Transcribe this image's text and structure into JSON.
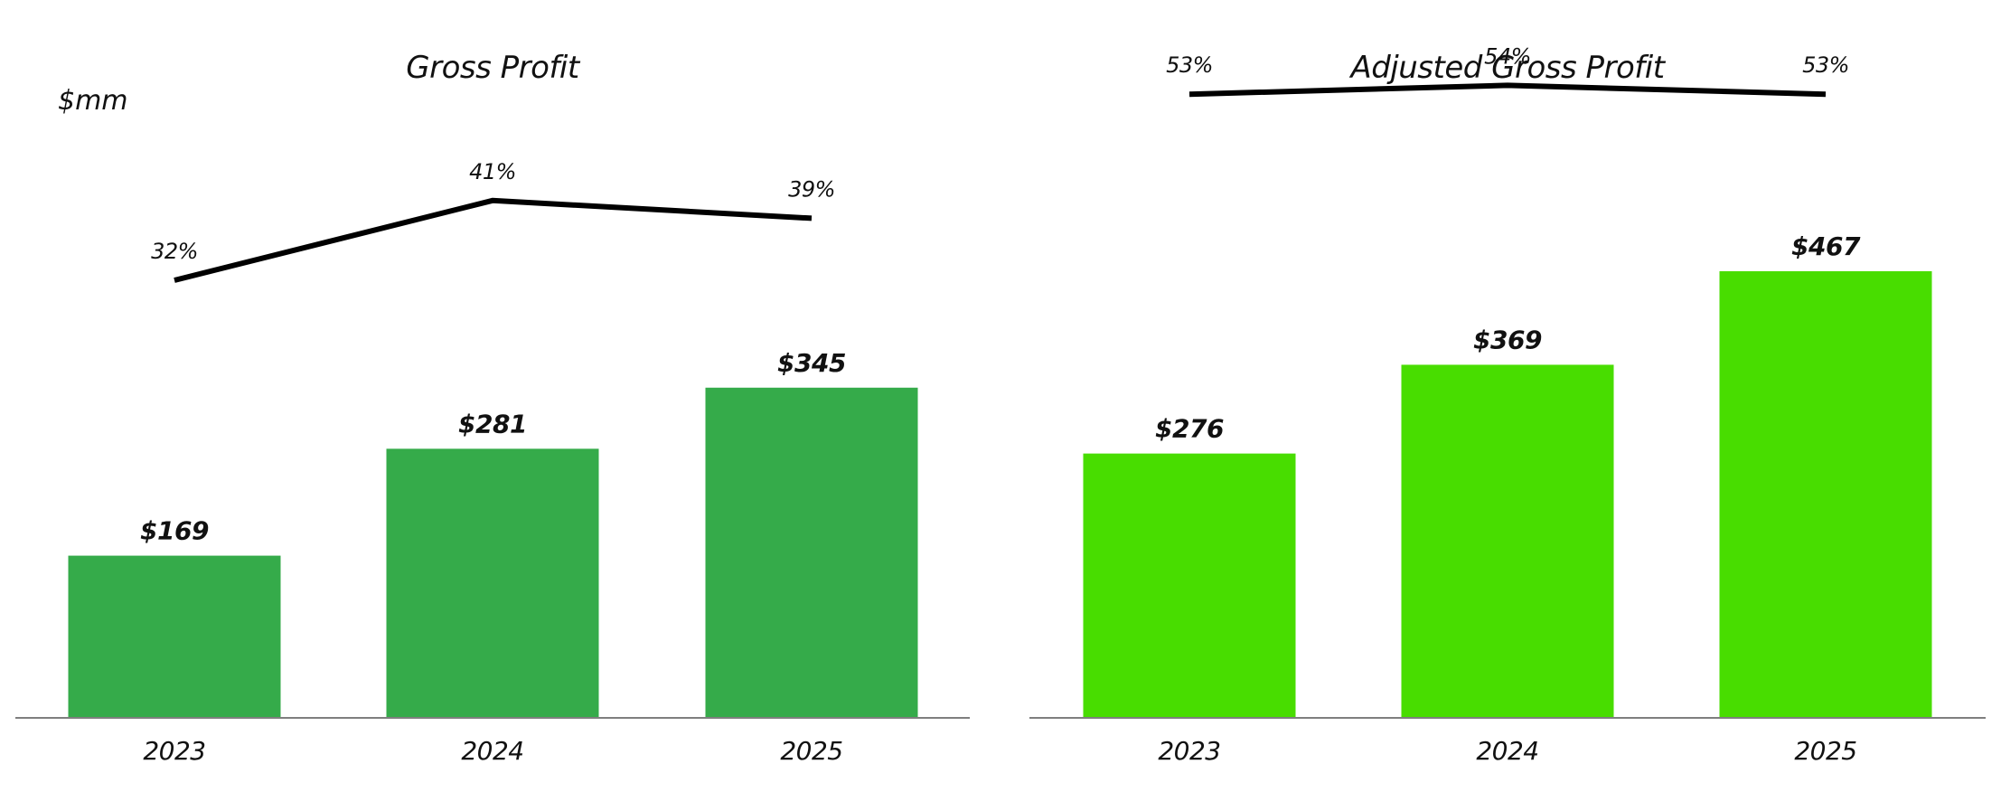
{
  "chart_data": [
    {
      "type": "bar",
      "title": "Gross Profit",
      "unit": "$mm",
      "categories": [
        "2023",
        "2024",
        "2025"
      ],
      "values": [
        169,
        281,
        345
      ],
      "value_labels": [
        "$169",
        "$281",
        "$345"
      ],
      "bar_color": "#35AB4A",
      "line": {
        "name": "",
        "values": [
          32,
          41,
          39
        ],
        "labels": [
          "32%",
          "41%",
          "39%"
        ],
        "color": "#000000"
      },
      "grid": false
    },
    {
      "type": "bar",
      "title": "Adjusted Gross Profit",
      "categories": [
        "2023",
        "2024",
        "2025"
      ],
      "values": [
        276,
        369,
        467
      ],
      "value_labels": [
        "$276",
        "$369",
        "$467"
      ],
      "bar_color": "#48DD00",
      "line": {
        "name": "",
        "values": [
          53,
          54,
          53
        ],
        "labels": [
          "53%",
          "54%",
          "53%"
        ],
        "color": "#000000"
      },
      "grid": false
    }
  ]
}
